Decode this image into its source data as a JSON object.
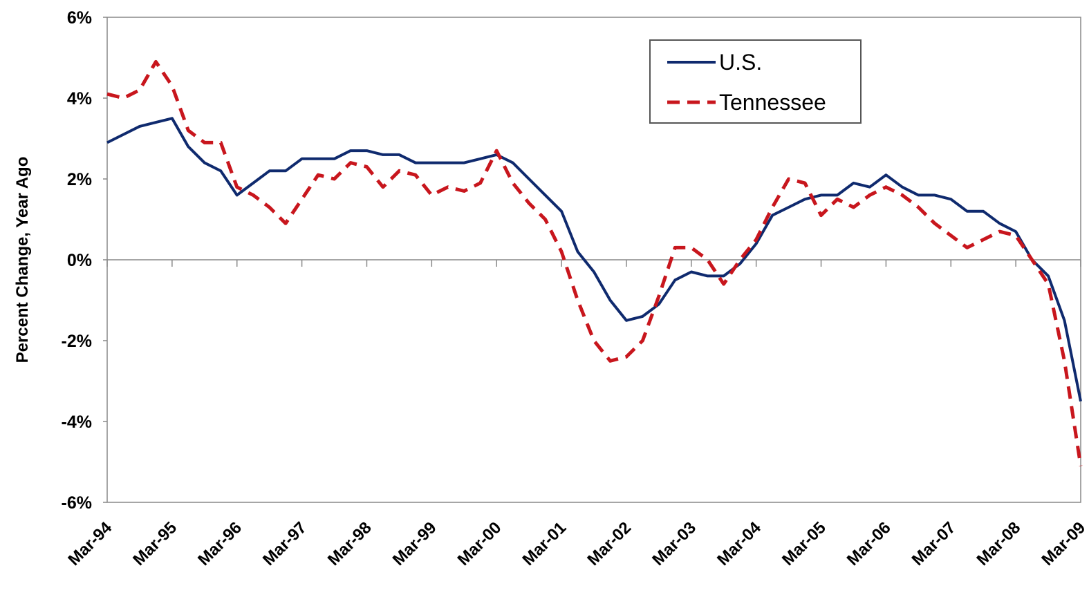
{
  "chart_data": {
    "type": "line",
    "y_label": "Percent Change, Year Ago",
    "categories": [
      "Mar-94",
      null,
      null,
      null,
      "Mar-95",
      null,
      null,
      null,
      "Mar-96",
      null,
      null,
      null,
      "Mar-97",
      null,
      null,
      null,
      "Mar-98",
      null,
      null,
      null,
      "Mar-99",
      null,
      null,
      null,
      "Mar-00",
      null,
      null,
      null,
      "Mar-01",
      null,
      null,
      null,
      "Mar-02",
      null,
      null,
      null,
      "Mar-03",
      null,
      null,
      null,
      "Mar-04",
      null,
      null,
      null,
      "Mar-05",
      null,
      null,
      null,
      "Mar-06",
      null,
      null,
      null,
      "Mar-07",
      null,
      null,
      null,
      "Mar-08",
      null,
      null,
      null,
      "Mar-09"
    ],
    "series": [
      {
        "name": "U.S.",
        "color": "#0f2a6e",
        "style": "solid",
        "values": [
          2.9,
          3.1,
          3.3,
          3.4,
          3.5,
          2.8,
          2.4,
          2.2,
          1.6,
          1.9,
          2.2,
          2.2,
          2.5,
          2.5,
          2.5,
          2.7,
          2.7,
          2.6,
          2.6,
          2.4,
          2.4,
          2.4,
          2.4,
          2.5,
          2.6,
          2.4,
          2.0,
          1.6,
          1.2,
          0.2,
          -0.3,
          -1.0,
          -1.5,
          -1.4,
          -1.1,
          -0.5,
          -0.3,
          -0.4,
          -0.4,
          -0.1,
          0.4,
          1.1,
          1.3,
          1.5,
          1.6,
          1.6,
          1.9,
          1.8,
          2.1,
          1.8,
          1.6,
          1.6,
          1.5,
          1.2,
          1.2,
          0.9,
          0.7,
          0.0,
          -0.4,
          -1.5,
          -3.5
        ]
      },
      {
        "name": "Tennessee",
        "color": "#c8161d",
        "style": "dashed",
        "values": [
          4.1,
          4.0,
          4.2,
          4.9,
          4.3,
          3.2,
          2.9,
          2.9,
          1.8,
          1.6,
          1.3,
          0.9,
          1.5,
          2.1,
          2.0,
          2.4,
          2.3,
          1.8,
          2.2,
          2.1,
          1.6,
          1.8,
          1.7,
          1.9,
          2.7,
          1.9,
          1.4,
          1.0,
          0.2,
          -1.0,
          -2.0,
          -2.5,
          -2.4,
          -2.0,
          -0.9,
          0.3,
          0.3,
          0.0,
          -0.6,
          0.0,
          0.5,
          1.3,
          2.0,
          1.9,
          1.1,
          1.5,
          1.3,
          1.6,
          1.8,
          1.6,
          1.3,
          0.9,
          0.6,
          0.3,
          0.5,
          0.7,
          0.6,
          0.0,
          -0.6,
          -2.5,
          -5.1
        ]
      }
    ],
    "ylim": [
      -6,
      6
    ],
    "yticks": [
      {
        "value": -6,
        "label": "-6%"
      },
      {
        "value": -4,
        "label": "-4%"
      },
      {
        "value": -2,
        "label": "-2%"
      },
      {
        "value": 0,
        "label": "0%"
      },
      {
        "value": 2,
        "label": "2%"
      },
      {
        "value": 4,
        "label": "4%"
      },
      {
        "value": 6,
        "label": "6%"
      }
    ],
    "legend": "top-right"
  }
}
